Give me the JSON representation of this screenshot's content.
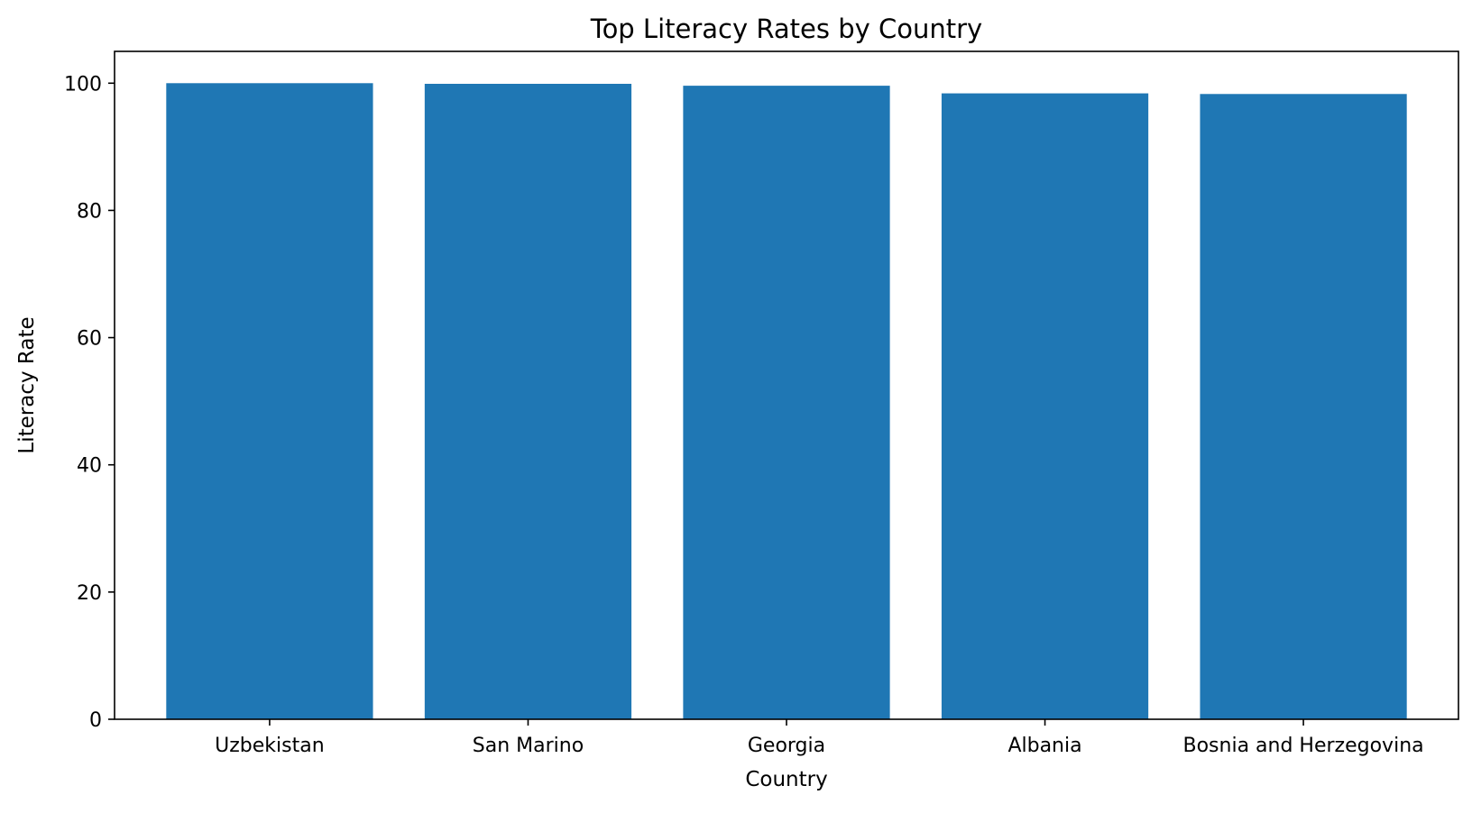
{
  "chart_data": {
    "type": "bar",
    "title": "Top Literacy Rates by Country",
    "xlabel": "Country",
    "ylabel": "Literacy Rate",
    "categories": [
      "Uzbekistan",
      "San Marino",
      "Georgia",
      "Albania",
      "Bosnia and Herzegovina"
    ],
    "values": [
      100.0,
      99.9,
      99.6,
      98.4,
      98.3
    ],
    "ylim": [
      0,
      105
    ],
    "yticks": [
      "0",
      "20",
      "40",
      "60",
      "80",
      "100"
    ],
    "grid": false,
    "legend": "none",
    "bar_color": "#1f77b4"
  }
}
